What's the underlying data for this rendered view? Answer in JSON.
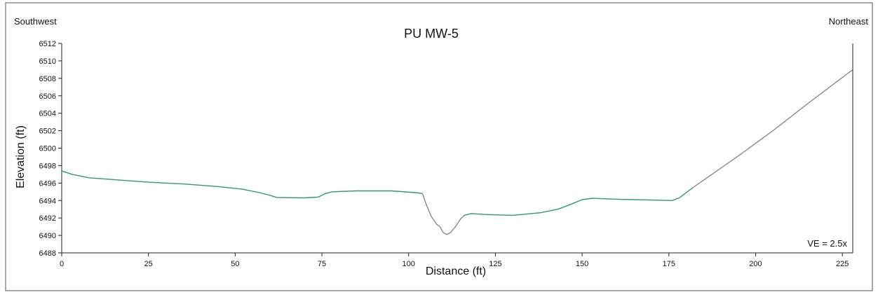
{
  "chart_data": {
    "type": "line",
    "title": "PU MW-5",
    "xlabel": "Distance (ft)",
    "ylabel": "Elevation (ft)",
    "left_label": "Southwest",
    "right_label": "Northeast",
    "annotation": "VE = 2.5x",
    "xlim": [
      0,
      228
    ],
    "ylim": [
      6488,
      6512
    ],
    "x_ticks": [
      0,
      25,
      50,
      75,
      100,
      125,
      150,
      175,
      200,
      225
    ],
    "y_ticks": [
      6488,
      6490,
      6492,
      6494,
      6496,
      6498,
      6500,
      6502,
      6504,
      6506,
      6508,
      6510,
      6512
    ],
    "grid": false,
    "series": [
      {
        "color": "#2e9a74",
        "points": [
          [
            0,
            6497.4
          ],
          [
            3,
            6497.0
          ],
          [
            8,
            6496.6
          ],
          [
            15,
            6496.4
          ],
          [
            25,
            6496.1
          ],
          [
            35,
            6495.9
          ],
          [
            45,
            6495.6
          ],
          [
            52,
            6495.3
          ],
          [
            57,
            6494.9
          ],
          [
            60,
            6494.6
          ],
          [
            62,
            6494.35
          ],
          [
            70,
            6494.3
          ],
          [
            74,
            6494.4
          ],
          [
            76,
            6494.8
          ],
          [
            78,
            6495.0
          ],
          [
            85,
            6495.1
          ],
          [
            95,
            6495.1
          ],
          [
            102,
            6494.9
          ],
          [
            104,
            6494.8
          ]
        ]
      },
      {
        "color": "#8a8a8a",
        "points": [
          [
            104,
            6494.8
          ],
          [
            105,
            6493.6
          ],
          [
            106.5,
            6492.2
          ],
          [
            108,
            6491.3
          ],
          [
            109,
            6491.0
          ],
          [
            110,
            6490.3
          ],
          [
            111,
            6490.1
          ],
          [
            112,
            6490.3
          ],
          [
            113.5,
            6491.0
          ],
          [
            115,
            6491.9
          ],
          [
            116,
            6492.3
          ]
        ]
      },
      {
        "color": "#2e9a74",
        "points": [
          [
            116,
            6492.3
          ],
          [
            118,
            6492.5
          ],
          [
            122,
            6492.4
          ],
          [
            130,
            6492.3
          ],
          [
            138,
            6492.6
          ],
          [
            143,
            6493.0
          ],
          [
            147,
            6493.6
          ],
          [
            150,
            6494.1
          ],
          [
            153,
            6494.25
          ],
          [
            160,
            6494.15
          ],
          [
            170,
            6494.05
          ],
          [
            176,
            6494.0
          ],
          [
            178,
            6494.3
          ],
          [
            182,
            6495.5
          ]
        ]
      },
      {
        "color": "#8a8a8a",
        "points": [
          [
            182,
            6495.5
          ],
          [
            195,
            6499.1
          ],
          [
            205,
            6502.0
          ],
          [
            215,
            6505.1
          ],
          [
            228,
            6509.0
          ]
        ]
      }
    ]
  }
}
